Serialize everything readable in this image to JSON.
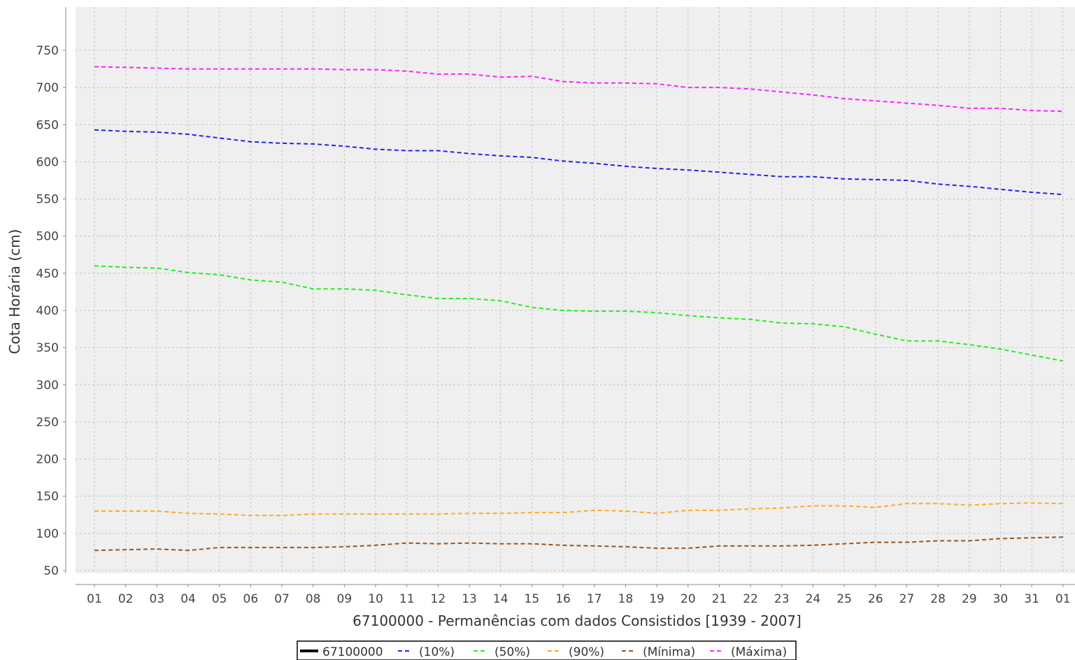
{
  "chart_data": {
    "type": "line",
    "title": "",
    "xlabel": "67100000 - Permanências com dados Consistidos [1939 - 2007]",
    "ylabel": "Cota Horária (cm)",
    "ylim": [
      40,
      760
    ],
    "yticks": [
      50,
      100,
      150,
      200,
      250,
      300,
      350,
      400,
      450,
      500,
      550,
      600,
      650,
      700,
      750
    ],
    "categories": [
      "01",
      "02",
      "03",
      "04",
      "05",
      "06",
      "07",
      "08",
      "09",
      "10",
      "11",
      "12",
      "13",
      "14",
      "15",
      "16",
      "17",
      "18",
      "19",
      "20",
      "21",
      "22",
      "23",
      "24",
      "25",
      "26",
      "27",
      "28",
      "29",
      "30",
      "31",
      "01"
    ],
    "grid": true,
    "legend_position": "bottom",
    "legend": [
      {
        "label": "67100000",
        "color": "#000000",
        "style": "solid"
      },
      {
        "label": "(10%)",
        "color": "#2222ee",
        "style": "dashed"
      },
      {
        "label": "(50%)",
        "color": "#22ee22",
        "style": "dashed"
      },
      {
        "label": "(90%)",
        "color": "#ffaa22",
        "style": "dashed"
      },
      {
        "label": "(Mínima)",
        "color": "#995522",
        "style": "dashed"
      },
      {
        "label": "(Máxima)",
        "color": "#ff22ff",
        "style": "dashed"
      }
    ],
    "series": [
      {
        "name": "(Máxima)",
        "color": "#ff22ff",
        "values": [
          728,
          727,
          726,
          725,
          725,
          725,
          725,
          725,
          724,
          724,
          722,
          718,
          718,
          714,
          715,
          708,
          706,
          706,
          705,
          700,
          700,
          698,
          694,
          690,
          685,
          682,
          679,
          676,
          672,
          672,
          669,
          668
        ]
      },
      {
        "name": "(10%)",
        "color": "#2222ee",
        "values": [
          643,
          641,
          640,
          637,
          632,
          627,
          625,
          624,
          621,
          617,
          615,
          615,
          611,
          608,
          606,
          601,
          598,
          594,
          591,
          589,
          586,
          583,
          580,
          580,
          577,
          576,
          575,
          570,
          567,
          563,
          559,
          556
        ]
      },
      {
        "name": "(50%)",
        "color": "#22ee22",
        "values": [
          460,
          458,
          457,
          451,
          448,
          441,
          438,
          429,
          429,
          427,
          421,
          416,
          416,
          413,
          404,
          400,
          399,
          399,
          397,
          393,
          390,
          388,
          383,
          382,
          378,
          368,
          359,
          359,
          354,
          348,
          340,
          332
        ]
      },
      {
        "name": "(90%)",
        "color": "#ffaa22",
        "values": [
          130,
          130,
          130,
          127,
          126,
          124,
          124,
          126,
          126,
          126,
          126,
          126,
          127,
          127,
          128,
          128,
          131,
          130,
          127,
          131,
          131,
          133,
          134,
          137,
          137,
          135,
          140,
          140,
          138,
          140,
          141,
          140
        ]
      },
      {
        "name": "(Mínima)",
        "color": "#995522",
        "values": [
          77,
          78,
          79,
          77,
          81,
          81,
          81,
          81,
          82,
          84,
          87,
          86,
          87,
          86,
          86,
          84,
          83,
          82,
          80,
          80,
          83,
          83,
          83,
          84,
          86,
          88,
          88,
          90,
          90,
          93,
          94,
          95
        ]
      }
    ]
  }
}
